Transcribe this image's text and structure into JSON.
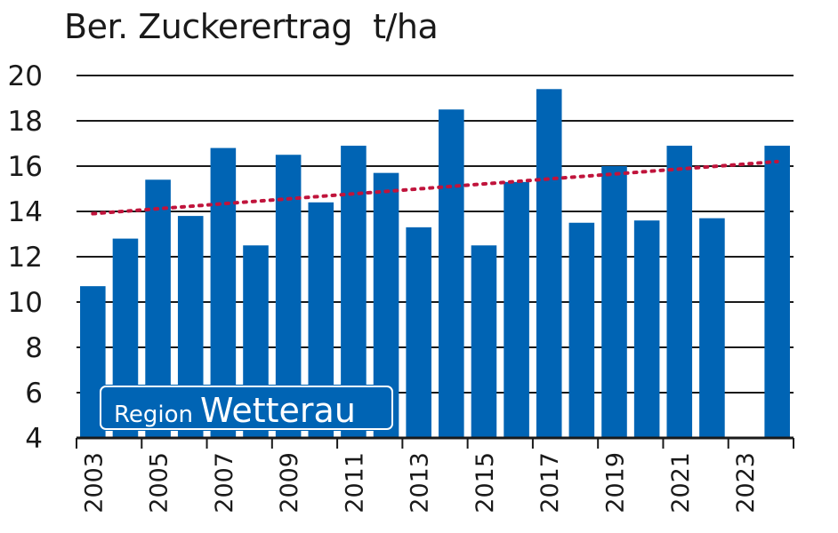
{
  "chart_data": {
    "type": "bar",
    "title": "Ber. Zuckerertrag  t/ha",
    "categories": [
      "2003",
      "2004",
      "2005",
      "2006",
      "2007",
      "2008",
      "2009",
      "2010",
      "2011",
      "2012",
      "2013",
      "2014",
      "2015",
      "2016",
      "2017",
      "2018",
      "2019",
      "2020",
      "2021",
      "2022",
      "2023",
      "2024"
    ],
    "x_tick_labels": [
      "2003",
      "2005",
      "2007",
      "2009",
      "2011",
      "2013",
      "2015",
      "2017",
      "2019",
      "2021",
      "2023"
    ],
    "values": [
      10.7,
      12.8,
      15.4,
      13.8,
      16.8,
      12.5,
      16.5,
      14.4,
      16.9,
      15.7,
      13.3,
      18.5,
      12.5,
      15.3,
      19.4,
      13.5,
      16.0,
      13.6,
      16.9,
      13.7,
      null,
      16.9
    ],
    "ylim": [
      4,
      20
    ],
    "y_ticks": [
      4,
      6,
      8,
      10,
      12,
      14,
      16,
      18,
      20
    ],
    "trend": {
      "start": {
        "x": "2003",
        "y": 13.9
      },
      "end": {
        "x": "2024",
        "y": 16.2
      }
    },
    "grid": true,
    "colors": {
      "bar": "#0064b4",
      "trend": "#c0143c",
      "grid": "#1a1a1a"
    }
  },
  "legend_box": {
    "prefix": "Region",
    "name": "Wetterau"
  }
}
